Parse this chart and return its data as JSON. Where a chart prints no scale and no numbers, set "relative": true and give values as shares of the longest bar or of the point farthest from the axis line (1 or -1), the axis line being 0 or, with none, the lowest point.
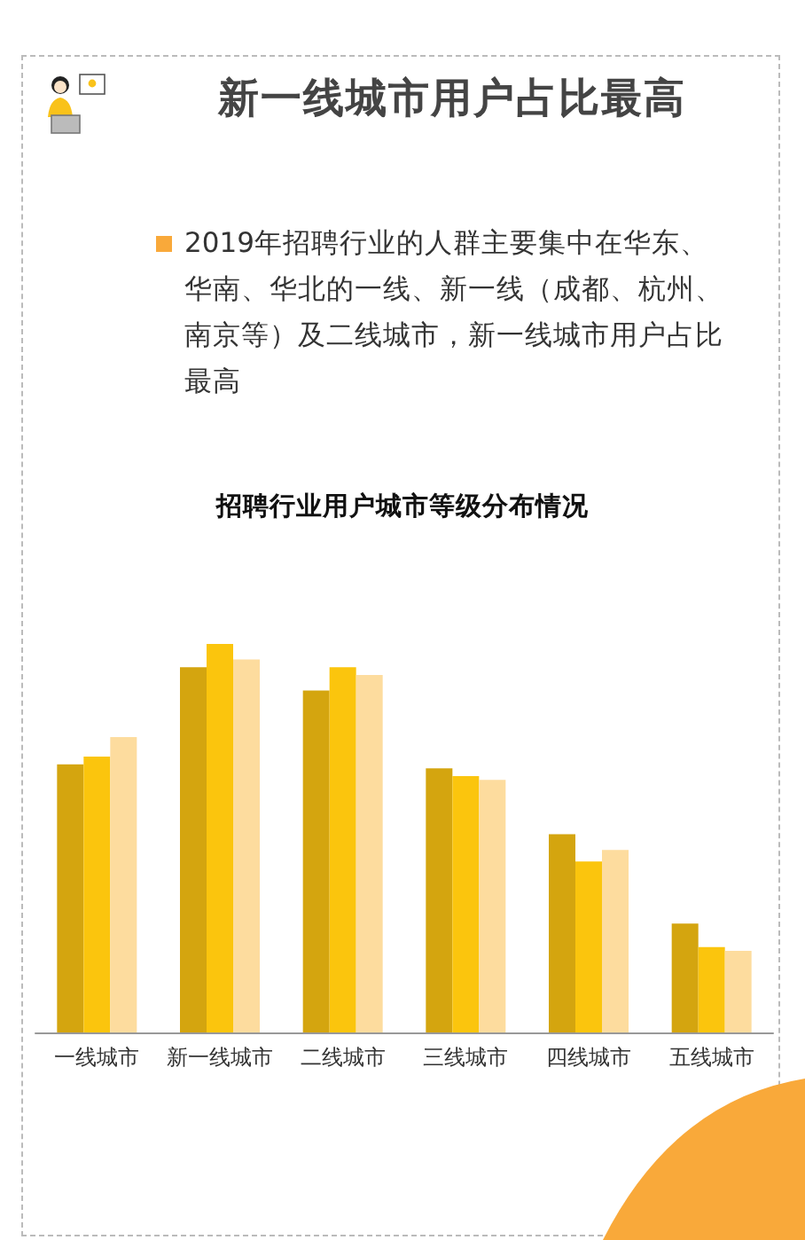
{
  "chart_data": {
    "type": "bar",
    "title": "新一线城市用户占比最高",
    "subtitle": "2019年招聘行业的人群主要集中在华东、华南、华北的一线、新一线（成都、杭州、南京等）及二线城市，新一线城市用户占比最高",
    "annotations": [
      "招聘行业用户城市等级分布情况"
    ],
    "relative": true,
    "categories": [
      "一线城市",
      "新一线城市",
      "二线城市",
      "三线城市",
      "四线城市",
      "五线城市"
    ],
    "series": [
      {
        "color": "#d4a50f",
        "values": [
          0.69,
          0.94,
          0.88,
          0.68,
          0.51,
          0.28
        ]
      },
      {
        "color": "#fbc50d",
        "values": [
          0.71,
          1,
          0.94,
          0.66,
          0.44,
          0.22
        ]
      },
      {
        "color": "#fddc9e",
        "values": [
          0.76,
          0.96,
          0.92,
          0.65,
          0.47,
          0.21
        ]
      }
    ]
  }
}
